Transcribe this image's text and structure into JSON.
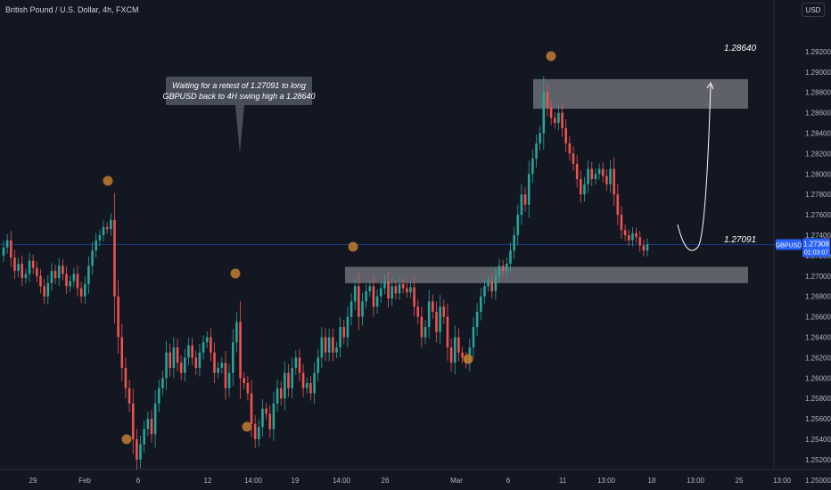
{
  "header": {
    "title": "British Pound / U.S. Dollar, 4h, FXCM",
    "currency_button": "USD"
  },
  "colors": {
    "background": "#131722",
    "up": "#26a69a",
    "down": "#ef5350",
    "zone": "#ffffff",
    "marker": "#c17d2e",
    "price_label": "#2962ff"
  },
  "chart_data": {
    "type": "candlestick",
    "title": "British Pound / U.S. Dollar, 4h, FXCM",
    "y_ticks": [
      "1.29200",
      "1.29000",
      "1.28800",
      "1.28600",
      "1.28400",
      "1.28200",
      "1.28000",
      "1.27800",
      "1.27600",
      "1.27400",
      "1.27200",
      "1.27000",
      "1.26800",
      "1.26600",
      "1.26400",
      "1.26200",
      "1.26000",
      "1.25800",
      "1.25600",
      "1.25400",
      "1.25200",
      "1.25000"
    ],
    "x_ticks": [
      "29",
      "Feb",
      "6",
      "12",
      "14:00",
      "19",
      "14:00",
      "26",
      "Mar",
      "6",
      "11",
      "13:00",
      "18",
      "13:00",
      "25",
      "13:00"
    ],
    "ylim": [
      1.2497,
      1.2928
    ],
    "grid": false,
    "current_price": {
      "symbol": "GBPUSD",
      "price": "1.27308",
      "countdown": "01:03:07"
    },
    "zones": [
      {
        "label": "1.28640",
        "low": 1.2864,
        "high": 1.2893
      },
      {
        "label": "1.27091",
        "low": 1.2693,
        "high": 1.2709
      }
    ],
    "annotation": "Waiting for a retest of 1.27091 to long GBPUSD back to 4H swing high a 1.28640",
    "series_close": [
      1.2728,
      1.2735,
      1.2718,
      1.2705,
      1.2712,
      1.2698,
      1.2702,
      1.2715,
      1.2708,
      1.27,
      1.269,
      1.268,
      1.2693,
      1.2705,
      1.2698,
      1.271,
      1.2702,
      1.269,
      1.2695,
      1.2702,
      1.2688,
      1.268,
      1.2692,
      1.271,
      1.2725,
      1.2735,
      1.274,
      1.2748,
      1.2746,
      1.2755,
      1.268,
      1.264,
      1.261,
      1.259,
      1.2575,
      1.254,
      1.252,
      1.2535,
      1.255,
      1.256,
      1.2545,
      1.2575,
      1.259,
      1.26,
      1.2625,
      1.261,
      1.263,
      1.2615,
      1.2605,
      1.262,
      1.2632,
      1.262,
      1.261,
      1.2625,
      1.2635,
      1.264,
      1.2625,
      1.2605,
      1.261,
      1.2615,
      1.259,
      1.2605,
      1.2635,
      1.2655,
      1.26,
      1.2595,
      1.2585,
      1.2555,
      1.254,
      1.2552,
      1.257,
      1.2565,
      1.255,
      1.2575,
      1.259,
      1.258,
      1.2605,
      1.259,
      1.261,
      1.262,
      1.2605,
      1.259,
      1.2595,
      1.2585,
      1.2605,
      1.262,
      1.264,
      1.2625,
      1.264,
      1.2625,
      1.263,
      1.265,
      1.264,
      1.266,
      1.2675,
      1.269,
      1.266,
      1.2675,
      1.2685,
      1.269,
      1.267,
      1.268,
      1.2688,
      1.2695,
      1.2678,
      1.269,
      1.2683,
      1.2692,
      1.2688,
      1.2684,
      1.2689,
      1.267,
      1.266,
      1.264,
      1.265,
      1.2675,
      1.2665,
      1.2645,
      1.267,
      1.266,
      1.263,
      1.2615,
      1.264,
      1.2625,
      1.262,
      1.2615,
      1.263,
      1.265,
      1.2665,
      1.268,
      1.269,
      1.2695,
      1.2685,
      1.27,
      1.271,
      1.2705,
      1.2712,
      1.2725,
      1.274,
      1.276,
      1.278,
      1.277,
      1.28,
      1.2815,
      1.283,
      1.284,
      1.288,
      1.2865,
      1.2855,
      1.285,
      1.286,
      1.2845,
      1.283,
      1.282,
      1.281,
      1.2795,
      1.278,
      1.279,
      1.2805,
      1.2795,
      1.28,
      1.2805,
      1.2798,
      1.279,
      1.2805,
      1.278,
      1.276,
      1.2745,
      1.274,
      1.2735,
      1.2742,
      1.2738,
      1.273,
      1.2725,
      1.2731
    ]
  }
}
